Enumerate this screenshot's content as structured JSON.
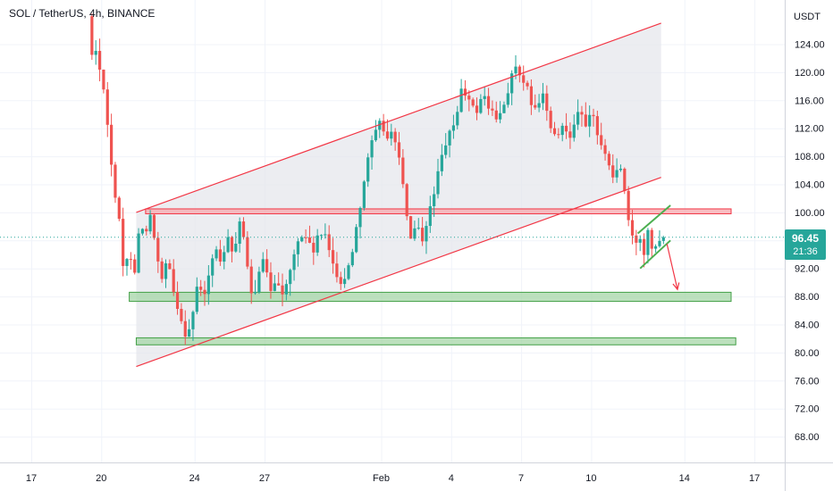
{
  "header": {
    "title": "SOL / TetherUS, 4h, BINANCE"
  },
  "price_axis": {
    "currency": "USDT",
    "last_price": "96.45",
    "countdown": "21:36"
  },
  "colors": {
    "up": "#26a69a",
    "down": "#ef5350",
    "channel": "#f23645",
    "resistance_fill": "#f7a8ad",
    "support_fill": "#a5d6a7",
    "support_stroke": "#43a047",
    "flag": "#4caf50",
    "channel_fill": "#e6e7ec",
    "grid": "#f0f3fa"
  },
  "chart_data": {
    "type": "candlestick",
    "symbol": "SOL / TetherUS",
    "interval": "4h",
    "exchange": "BINANCE",
    "y_unit": "USDT",
    "ylim": [
      65.5,
      127.5
    ],
    "y_ticks": [
      124,
      120,
      116,
      112,
      108,
      104,
      100,
      96,
      92,
      88,
      84,
      80,
      76,
      72,
      68
    ],
    "y_tick_labels": [
      "124.00",
      "120.00",
      "116.00",
      "112.00",
      "108.00",
      "104.00",
      "100.00",
      "",
      "92.00",
      "88.00",
      "84.00",
      "80.00",
      "76.00",
      "72.00",
      "68.00"
    ],
    "x_ticks": [
      {
        "label": "17",
        "day": 17
      },
      {
        "label": "20",
        "day": 20
      },
      {
        "label": "24",
        "day": 24
      },
      {
        "label": "27",
        "day": 27
      },
      {
        "label": "Feb",
        "day": 32
      },
      {
        "label": "4",
        "day": 35
      },
      {
        "label": "7",
        "day": 38
      },
      {
        "label": "10",
        "day": 41
      },
      {
        "label": "14",
        "day": 45
      },
      {
        "label": "17",
        "day": 48
      }
    ],
    "grid": true,
    "last_price": 96.45,
    "candle_path": [
      [
        19.6,
        128
      ],
      [
        19.75,
        122
      ],
      [
        19.9,
        124
      ],
      [
        20.1,
        120
      ],
      [
        20.3,
        118
      ],
      [
        20.5,
        110
      ],
      [
        20.7,
        104
      ],
      [
        20.95,
        98
      ],
      [
        21.15,
        90
      ],
      [
        21.35,
        95
      ],
      [
        21.6,
        92
      ],
      [
        21.85,
        99
      ],
      [
        22.1,
        97
      ],
      [
        22.3,
        100
      ],
      [
        22.5,
        94
      ],
      [
        22.75,
        90
      ],
      [
        23.0,
        93
      ],
      [
        23.3,
        88
      ],
      [
        23.6,
        85
      ],
      [
        23.85,
        82
      ],
      [
        24.1,
        86
      ],
      [
        24.35,
        90
      ],
      [
        24.6,
        88
      ],
      [
        24.85,
        92
      ],
      [
        25.1,
        95
      ],
      [
        25.35,
        92
      ],
      [
        25.6,
        97
      ],
      [
        25.85,
        94
      ],
      [
        26.1,
        99
      ],
      [
        26.35,
        94
      ],
      [
        26.6,
        88
      ],
      [
        26.85,
        90
      ],
      [
        27.1,
        93
      ],
      [
        27.4,
        89
      ],
      [
        27.7,
        91
      ],
      [
        28.0,
        88
      ],
      [
        28.3,
        92
      ],
      [
        28.6,
        96
      ],
      [
        28.9,
        97
      ],
      [
        29.2,
        94
      ],
      [
        29.5,
        97
      ],
      [
        29.8,
        96
      ],
      [
        30.1,
        93
      ],
      [
        30.4,
        90
      ],
      [
        30.7,
        91
      ],
      [
        31.0,
        96
      ],
      [
        31.2,
        100
      ],
      [
        31.4,
        104
      ],
      [
        31.6,
        108
      ],
      [
        31.9,
        111
      ],
      [
        32.2,
        113
      ],
      [
        32.45,
        110
      ],
      [
        32.7,
        112
      ],
      [
        32.95,
        107
      ],
      [
        33.2,
        101
      ],
      [
        33.45,
        96
      ],
      [
        33.7,
        98
      ],
      [
        33.95,
        95
      ],
      [
        34.2,
        100
      ],
      [
        34.5,
        104
      ],
      [
        34.8,
        108
      ],
      [
        35.1,
        111
      ],
      [
        35.4,
        114
      ],
      [
        35.65,
        118
      ],
      [
        35.9,
        116
      ],
      [
        36.2,
        114
      ],
      [
        36.5,
        117
      ],
      [
        36.8,
        115
      ],
      [
        37.1,
        113
      ],
      [
        37.4,
        115
      ],
      [
        37.7,
        119
      ],
      [
        37.95,
        121
      ],
      [
        38.2,
        118
      ],
      [
        38.5,
        117
      ],
      [
        38.8,
        114
      ],
      [
        39.1,
        117
      ],
      [
        39.4,
        112
      ],
      [
        39.7,
        110
      ],
      [
        40.0,
        113
      ],
      [
        40.3,
        111
      ],
      [
        40.6,
        115
      ],
      [
        40.9,
        112
      ],
      [
        41.2,
        114
      ],
      [
        41.5,
        111
      ],
      [
        41.8,
        108
      ],
      [
        42.1,
        105
      ],
      [
        42.4,
        107
      ],
      [
        42.55,
        104
      ],
      [
        42.75,
        99
      ],
      [
        43.0,
        95
      ],
      [
        43.2,
        97
      ],
      [
        43.4,
        94
      ],
      [
        43.6,
        98
      ],
      [
        43.8,
        95
      ],
      [
        44.0,
        96
      ],
      [
        44.15,
        96.45
      ]
    ],
    "annotations": {
      "ascending_channel": {
        "lower_line": [
          [
            21.5,
            78
          ],
          [
            44.0,
            105
          ]
        ],
        "upper_line": [
          [
            21.5,
            100
          ],
          [
            44.0,
            127
          ]
        ]
      },
      "resistance_zone": {
        "from_day": 21.9,
        "to_day": 47.0,
        "low": 99.8,
        "high": 100.5
      },
      "support_zones": [
        {
          "from_day": 21.2,
          "to_day": 47.0,
          "low": 87.3,
          "high": 88.6
        },
        {
          "from_day": 21.5,
          "to_day": 47.2,
          "low": 81.1,
          "high": 82.1
        }
      ],
      "bear_flag": {
        "upper_line": [
          [
            43.0,
            97
          ],
          [
            44.4,
            101
          ]
        ],
        "lower_line": [
          [
            43.1,
            92
          ],
          [
            44.4,
            96
          ]
        ]
      },
      "projection_arrow": [
        [
          44.25,
          95.5
        ],
        [
          44.7,
          89
        ]
      ]
    }
  }
}
